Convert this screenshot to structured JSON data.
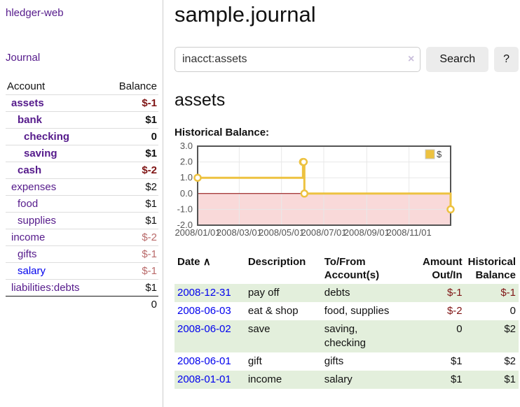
{
  "colors": {
    "link_purple": "#551A8B",
    "link_blue": "#0000EE",
    "negative_strong": "#7f1414",
    "negative_muted": "#b96a6a",
    "row_green": "#e3efdc",
    "series_yellow": "#EDC240",
    "negative_region_pink": "#f9d9d9",
    "zero_line_red": "#8b0000",
    "chart_border_gray": "#545454"
  },
  "sidebar": {
    "brand": "hledger-web",
    "nav_journal": "Journal",
    "accounts": {
      "header_account": "Account",
      "header_balance": "Balance",
      "rows": [
        {
          "name": "assets",
          "balance": "$-1"
        },
        {
          "name": "bank",
          "balance": "$1"
        },
        {
          "name": "checking",
          "balance": "0"
        },
        {
          "name": "saving",
          "balance": "$1"
        },
        {
          "name": "cash",
          "balance": "$-2"
        },
        {
          "name": "expenses",
          "balance": "$2"
        },
        {
          "name": "food",
          "balance": "$1"
        },
        {
          "name": "supplies",
          "balance": "$1"
        },
        {
          "name": "income",
          "balance": "$-2"
        },
        {
          "name": "gifts",
          "balance": "$-1"
        },
        {
          "name": "salary",
          "balance": "$-1"
        },
        {
          "name": "liabilities:debts",
          "balance": "$1"
        }
      ],
      "total": "0"
    }
  },
  "main": {
    "title": "sample.journal",
    "search": {
      "value": "inacct:assets",
      "clear_icon": "×",
      "button": "Search",
      "help": "?"
    },
    "account_heading": "assets",
    "chart_title": "Historical Balance:",
    "chart_data": {
      "type": "line",
      "step": true,
      "title": "Historical Balance",
      "legend": "$",
      "series": [
        {
          "name": "$",
          "points": [
            [
              "2008-01-01",
              1
            ],
            [
              "2008-06-01",
              2
            ],
            [
              "2008-06-02",
              2
            ],
            [
              "2008-06-03",
              0
            ],
            [
              "2008-12-31",
              -1
            ]
          ]
        }
      ],
      "x_range": [
        "2008-01-01",
        "2008-12-31"
      ],
      "x_tick_labels": [
        "2008/01/01",
        "2008/03/01",
        "2008/05/01",
        "2008/07/01",
        "2008/09/01",
        "2008/11/01"
      ],
      "y_tick_labels": [
        "3.0",
        "2.0",
        "1.0",
        "0.0",
        "-1.0",
        "-2.0"
      ],
      "ylim": [
        -2,
        3
      ],
      "negative_region": true,
      "grid": true,
      "legend_position": "top-right"
    },
    "register": {
      "headers": {
        "date": "Date",
        "sort_icon": "∧",
        "description": "Description",
        "tofrom": "To/From Account(s)",
        "amount": "Amount Out/In",
        "balance": "Historical Balance"
      },
      "rows": [
        {
          "date": "2008-12-31",
          "description": "pay off",
          "tofrom": "debts",
          "amount": "$-1",
          "balance": "$-1"
        },
        {
          "date": "2008-06-03",
          "description": "eat & shop",
          "tofrom": "food, supplies",
          "amount": "$-2",
          "balance": "0"
        },
        {
          "date": "2008-06-02",
          "description": "save",
          "tofrom": "saving, checking",
          "amount": "0",
          "balance": "$2"
        },
        {
          "date": "2008-06-01",
          "description": "gift",
          "tofrom": "gifts",
          "amount": "$1",
          "balance": "$2"
        },
        {
          "date": "2008-01-01",
          "description": "income",
          "tofrom": "salary",
          "amount": "$1",
          "balance": "$1"
        }
      ]
    }
  }
}
